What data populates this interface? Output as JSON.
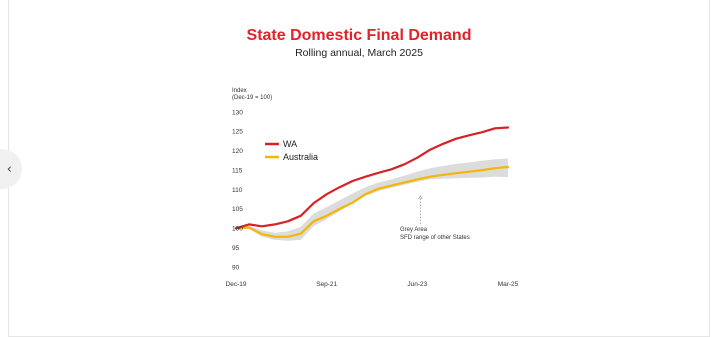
{
  "page": {
    "title": "State Domestic Final Demand",
    "subtitle": "Rolling annual, March 2025",
    "nav_prev_label": "‹"
  },
  "chart_data": {
    "type": "line",
    "title": "State Domestic Final Demand",
    "subtitle": "Rolling annual, March 2025",
    "ylabel_line1": "Index",
    "ylabel_line2": "(Dec-19 = 100)",
    "xlabel": "",
    "ylim": [
      90,
      130
    ],
    "yticks": [
      90,
      95,
      100,
      105,
      110,
      115,
      120,
      125,
      130
    ],
    "x_periods": [
      "Dec-19",
      "Mar-20",
      "Jun-20",
      "Sep-20",
      "Dec-20",
      "Mar-21",
      "Jun-21",
      "Sep-21",
      "Dec-21",
      "Mar-22",
      "Jun-22",
      "Sep-22",
      "Dec-22",
      "Mar-23",
      "Jun-23",
      "Sep-23",
      "Dec-23",
      "Mar-24",
      "Jun-24",
      "Sep-24",
      "Dec-24",
      "Mar-25"
    ],
    "xtick_labels": [
      "Dec-19",
      "Sep-21",
      "Jun-23",
      "Mar-25"
    ],
    "xtick_periods": [
      "Dec-19",
      "Sep-21",
      "Jun-23",
      "Mar-25"
    ],
    "grid": false,
    "legend_position": "top-left",
    "series": [
      {
        "name": "WA",
        "color": "#d92027",
        "values": [
          100,
          101,
          100.5,
          101,
          101.8,
          103.2,
          106.5,
          108.8,
          110.6,
          112.2,
          113.3,
          114.3,
          115.2,
          116.5,
          118.2,
          120.3,
          121.8,
          123.1,
          124,
          124.8,
          125.8,
          126
        ]
      },
      {
        "name": "Australia",
        "color": "#f2b705",
        "values": [
          100,
          100.2,
          98.5,
          97.8,
          97.8,
          98.6,
          101.8,
          103.2,
          105,
          106.6,
          108.8,
          110.2,
          111,
          111.8,
          112.6,
          113.3,
          113.8,
          114.2,
          114.6,
          115,
          115.5,
          115.8
        ]
      }
    ],
    "band": {
      "label": "Grey Area",
      "description": "SFD range of other States",
      "color": "#dcdcdc",
      "lower": [
        100,
        99.8,
        97.8,
        97,
        96.8,
        97,
        100.5,
        102.3,
        104.4,
        106.4,
        108.4,
        109.6,
        110.4,
        111.2,
        112,
        112.6,
        112.8,
        112.9,
        113,
        113.1,
        113.3,
        113.2
      ],
      "upper": [
        100,
        100.6,
        99.5,
        98.8,
        99.2,
        100.4,
        103.8,
        105.4,
        107.2,
        109,
        110.6,
        111.8,
        112.6,
        113.6,
        114.6,
        115.5,
        116.1,
        116.6,
        117,
        117.4,
        117.8,
        118
      ]
    },
    "annotation": {
      "line1": "Grey Area",
      "line2": "SFD range of other States",
      "arrow_to_period": "Jun-23"
    }
  }
}
